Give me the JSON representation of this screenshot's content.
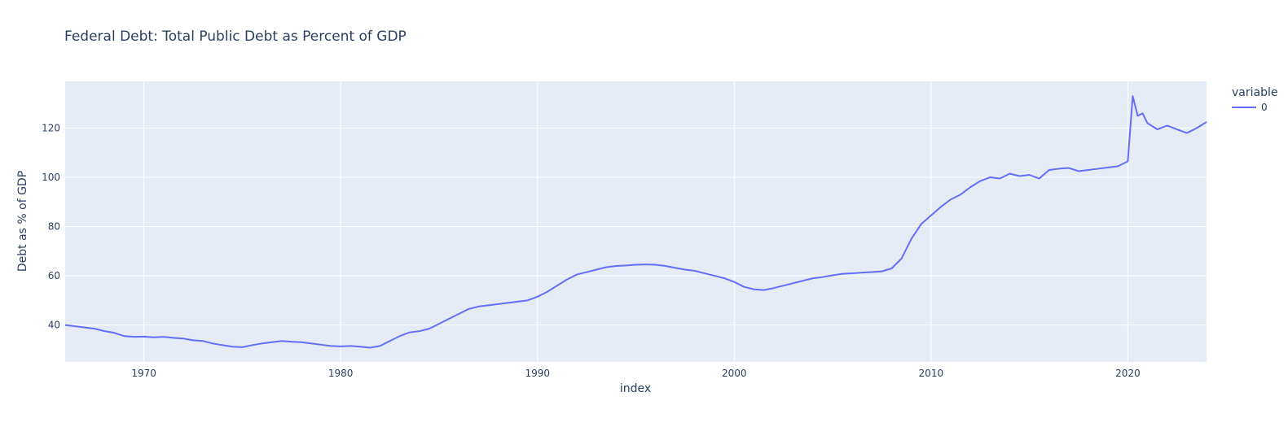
{
  "chart_data": {
    "type": "line",
    "title": "Federal Debt: Total Public Debt as Percent of GDP",
    "xlabel": "index",
    "ylabel": "Debt as % of GDP",
    "xlim": [
      1966.0,
      2024.0
    ],
    "ylim": [
      25,
      139
    ],
    "x_ticks": [
      1970,
      1980,
      1990,
      2000,
      2010,
      2020
    ],
    "y_ticks": [
      40,
      60,
      80,
      100,
      120
    ],
    "grid": true,
    "legend": {
      "title": "variable",
      "position": "top-right"
    },
    "colors": {
      "series": "#636efa",
      "plot_bg": "#e5ecf6",
      "grid": "#ffffff",
      "text": "#2a3f5f"
    },
    "series": [
      {
        "name": "0",
        "x": [
          1966.0,
          1966.5,
          1967.0,
          1967.5,
          1968.0,
          1968.5,
          1969.0,
          1969.5,
          1970.0,
          1970.5,
          1971.0,
          1971.5,
          1972.0,
          1972.5,
          1973.0,
          1973.5,
          1974.0,
          1974.5,
          1975.0,
          1975.5,
          1976.0,
          1976.5,
          1977.0,
          1977.5,
          1978.0,
          1978.5,
          1979.0,
          1979.5,
          1980.0,
          1980.5,
          1981.0,
          1981.5,
          1982.0,
          1982.5,
          1983.0,
          1983.5,
          1984.0,
          1984.5,
          1985.0,
          1985.5,
          1986.0,
          1986.5,
          1987.0,
          1987.5,
          1988.0,
          1988.5,
          1989.0,
          1989.5,
          1990.0,
          1990.5,
          1991.0,
          1991.5,
          1992.0,
          1992.5,
          1993.0,
          1993.5,
          1994.0,
          1994.5,
          1995.0,
          1995.5,
          1996.0,
          1996.5,
          1997.0,
          1997.5,
          1998.0,
          1998.5,
          1999.0,
          1999.5,
          2000.0,
          2000.5,
          2001.0,
          2001.5,
          2002.0,
          2002.5,
          2003.0,
          2003.5,
          2004.0,
          2004.5,
          2005.0,
          2005.5,
          2006.0,
          2006.5,
          2007.0,
          2007.5,
          2008.0,
          2008.5,
          2009.0,
          2009.5,
          2010.0,
          2010.5,
          2011.0,
          2011.5,
          2012.0,
          2012.5,
          2013.0,
          2013.5,
          2014.0,
          2014.5,
          2015.0,
          2015.5,
          2016.0,
          2016.5,
          2017.0,
          2017.5,
          2018.0,
          2018.5,
          2019.0,
          2019.5,
          2020.0,
          2020.25,
          2020.5,
          2020.75,
          2021.0,
          2021.5,
          2022.0,
          2022.5,
          2023.0,
          2023.5,
          2024.0
        ],
        "values": [
          40.0,
          39.5,
          39.0,
          38.5,
          37.5,
          36.8,
          35.5,
          35.2,
          35.3,
          35.0,
          35.2,
          34.8,
          34.5,
          33.8,
          33.5,
          32.5,
          31.8,
          31.2,
          31.0,
          31.8,
          32.5,
          33.0,
          33.5,
          33.2,
          33.0,
          32.5,
          32.0,
          31.5,
          31.3,
          31.5,
          31.2,
          30.8,
          31.5,
          33.5,
          35.5,
          37.0,
          37.5,
          38.5,
          40.5,
          42.5,
          44.5,
          46.5,
          47.5,
          48.0,
          48.5,
          49.0,
          49.5,
          50.0,
          51.5,
          53.5,
          56.0,
          58.5,
          60.5,
          61.5,
          62.5,
          63.5,
          64.0,
          64.2,
          64.5,
          64.6,
          64.5,
          64.0,
          63.2,
          62.5,
          62.0,
          61.0,
          60.0,
          59.0,
          57.5,
          55.5,
          54.5,
          54.2,
          55.0,
          56.0,
          57.0,
          58.0,
          59.0,
          59.5,
          60.2,
          60.8,
          61.0,
          61.3,
          61.5,
          61.8,
          63.0,
          67.0,
          75.0,
          81.0,
          84.5,
          88.0,
          91.0,
          93.0,
          96.0,
          98.5,
          100.0,
          99.5,
          101.5,
          100.5,
          101.0,
          99.5,
          103.0,
          103.5,
          103.8,
          102.5,
          103.0,
          103.5,
          104.0,
          104.5,
          106.5,
          133.0,
          125.0,
          126.0,
          122.0,
          119.5,
          121.0,
          119.5,
          118.0,
          120.0,
          122.5
        ]
      }
    ]
  }
}
